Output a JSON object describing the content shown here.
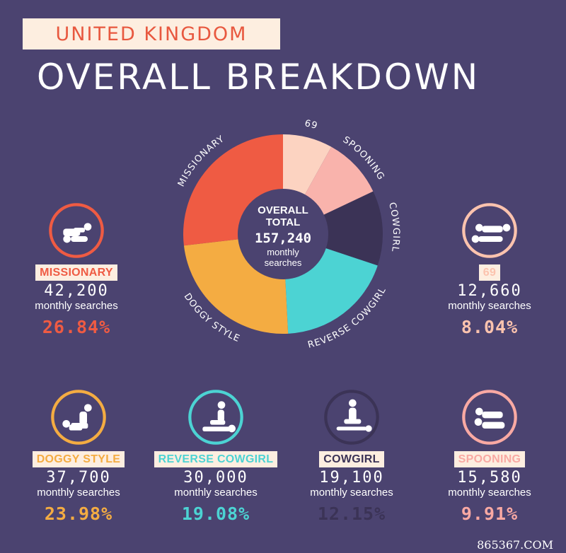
{
  "header": {
    "badge": "UNITED KINGDOM",
    "headline": "OVERALL BREAKDOWN"
  },
  "center": {
    "line1": "OVERALL",
    "line2": "TOTAL",
    "total": "157,240",
    "sub1": "monthly",
    "sub2": "searches"
  },
  "chart_data": {
    "type": "pie",
    "title": "OVERALL BREAKDOWN",
    "subtitle": "UNITED KINGDOM",
    "total": 157240,
    "slices": [
      {
        "label": "69",
        "value": 12660,
        "percent": 8.04,
        "color": "#fcd3c1"
      },
      {
        "label": "SPOONING",
        "value": 15580,
        "percent": 9.91,
        "color": "#f9b3ac"
      },
      {
        "label": "COWGIRL",
        "value": 19100,
        "percent": 12.15,
        "color": "#3b3356"
      },
      {
        "label": "REVERSE COWGIRL",
        "value": 30000,
        "percent": 19.08,
        "color": "#4cd3d3"
      },
      {
        "label": "DOGGY STYLE",
        "value": 37700,
        "percent": 23.98,
        "color": "#f4ac42"
      },
      {
        "label": "MISSIONARY",
        "value": 42200,
        "percent": 26.84,
        "color": "#ef5b43"
      }
    ]
  },
  "cards": [
    {
      "name": "missionary",
      "label": "MISSIONARY",
      "value": "42,200",
      "unit": "monthly searches",
      "percent": "26.84%",
      "color": "#ef5b43",
      "icon": "missionary-icon"
    },
    {
      "name": "69",
      "label": "69",
      "value": "12,660",
      "unit": "monthly searches",
      "percent": "8.04%",
      "color": "#fcc3ae",
      "icon": "69-icon"
    },
    {
      "name": "doggy-style",
      "label": "DOGGY STYLE",
      "value": "37,700",
      "unit": "monthly searches",
      "percent": "23.98%",
      "color": "#f4ac42",
      "icon": "doggy-style-icon"
    },
    {
      "name": "reverse-cowgirl",
      "label": "REVERSE COWGIRL",
      "value": "30,000",
      "unit": "monthly searches",
      "percent": "19.08%",
      "color": "#4cd3d3",
      "icon": "reverse-cowgirl-icon"
    },
    {
      "name": "cowgirl",
      "label": "COWGIRL",
      "value": "19,100",
      "unit": "monthly searches",
      "percent": "12.15%",
      "color": "#3b3356",
      "icon": "cowgirl-icon"
    },
    {
      "name": "spooning",
      "label": "SPOONING",
      "value": "15,580",
      "unit": "monthly searches",
      "percent": "9.91%",
      "color": "#f9a9a3",
      "icon": "spooning-icon"
    }
  ],
  "watermark": "865367.COM"
}
